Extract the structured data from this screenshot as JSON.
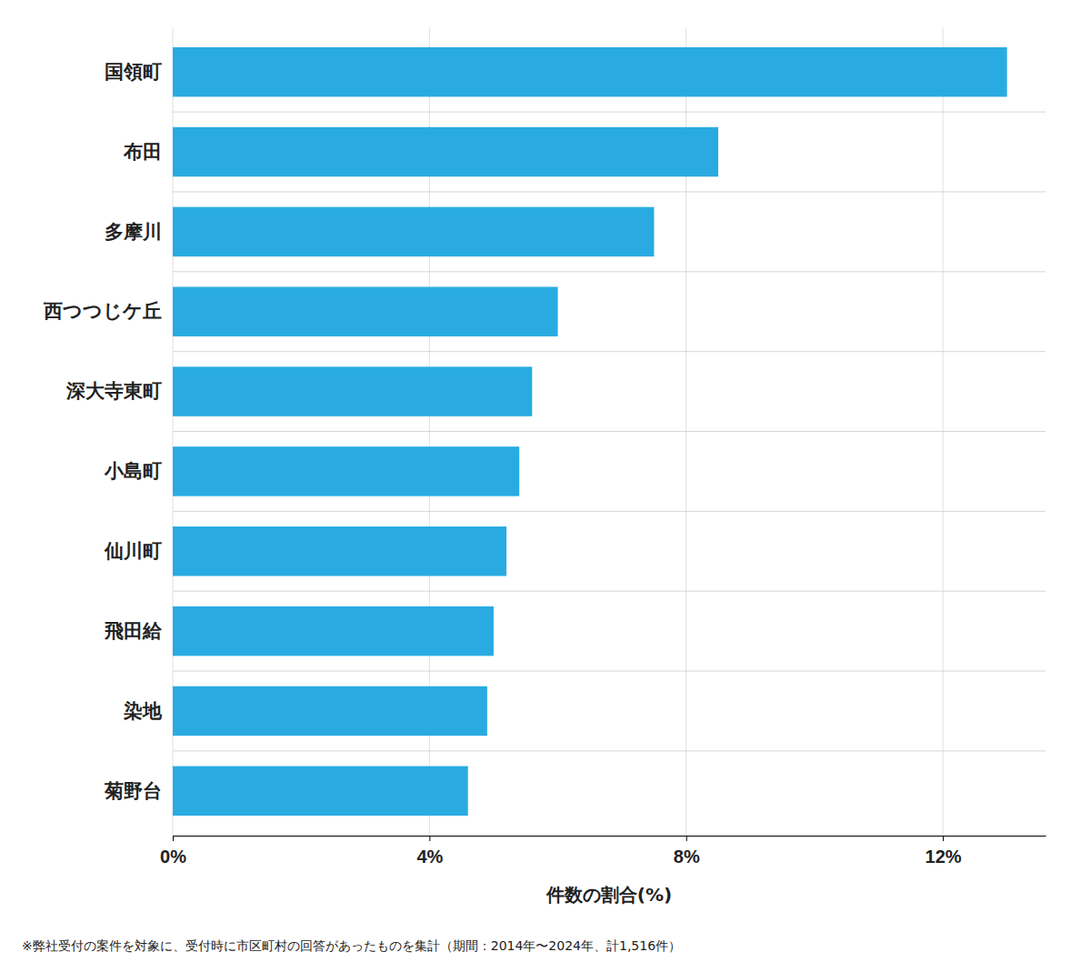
{
  "chart_data": {
    "type": "bar",
    "orientation": "horizontal",
    "categories": [
      "菊野台",
      "染地",
      "飛田給",
      "仙川町",
      "小島町",
      "深大寺東町",
      "西つつじケ丘",
      "多摩川",
      "布田",
      "国領町"
    ],
    "values": [
      4.6,
      4.9,
      5.0,
      5.2,
      5.4,
      5.6,
      6.0,
      7.5,
      8.5,
      13.0
    ],
    "color": "#29ABE2",
    "xlabel": "件数の割合(%)",
    "xlim": [
      0,
      13.6
    ],
    "xticks": [
      {
        "value": 0,
        "label": "0%"
      },
      {
        "value": 4,
        "label": "4%"
      },
      {
        "value": 8,
        "label": "8%"
      },
      {
        "value": 12,
        "label": "12%"
      }
    ],
    "grid": true,
    "annotations": [
      "※弊社受付の案件を対象に、受付時に市区町村の回答があったものを集計（期間：2014年〜2024年、計1,516件）"
    ]
  }
}
